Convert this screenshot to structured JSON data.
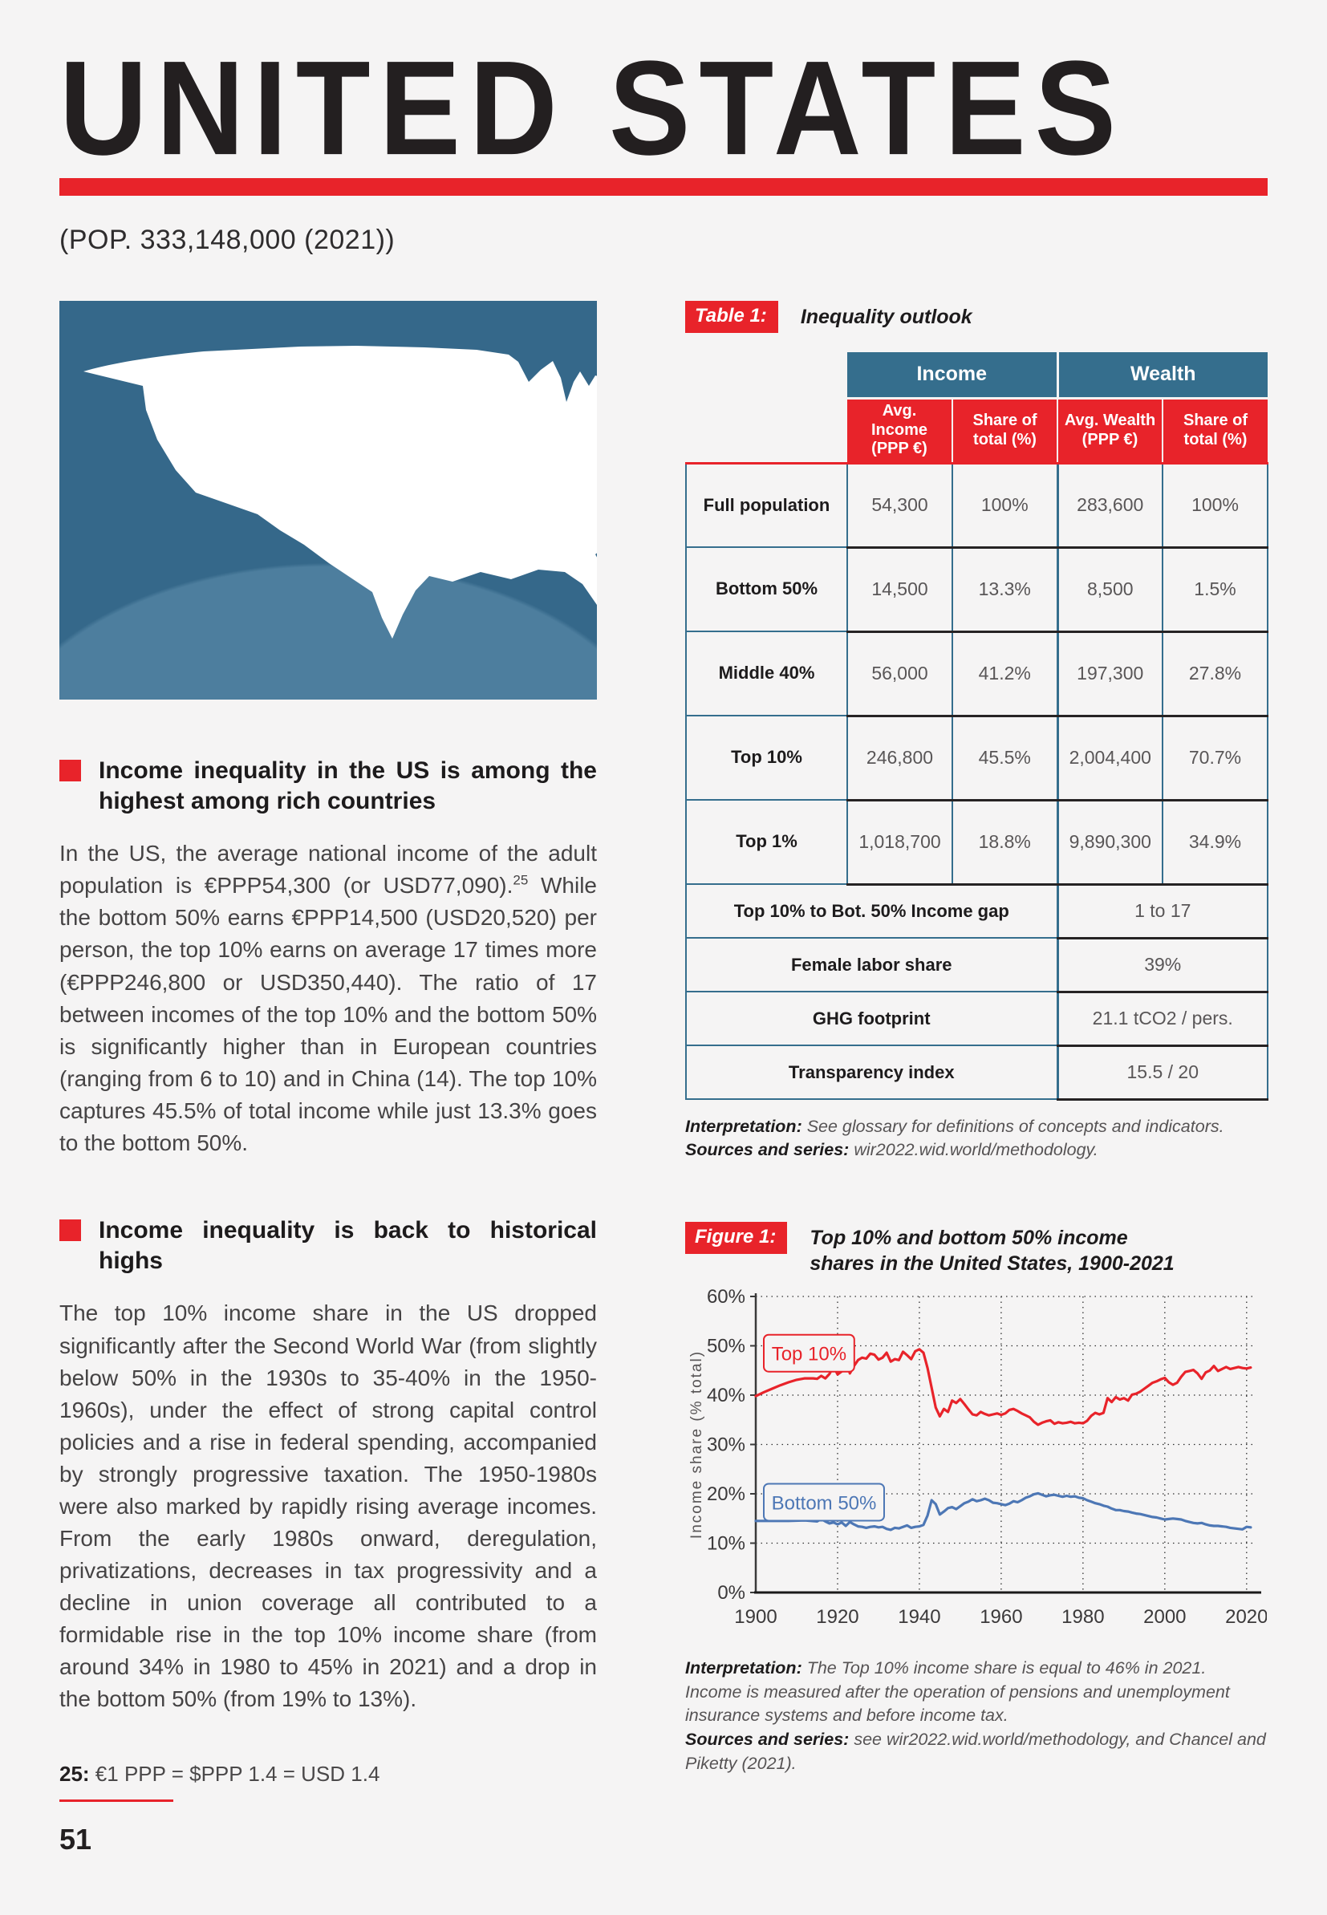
{
  "page": {
    "title": "UNITED STATES",
    "population_line": "(POP. 333,148,000 (2021))",
    "page_number": "51",
    "footnote": {
      "label": "25:",
      "text": " €1 PPP = $PPP 1.4 = USD 1.4"
    }
  },
  "colors": {
    "accent_red": "#e8232a",
    "table_header_teal": "#356e8d",
    "map_bg_dark": "#35688a",
    "map_bg_light": "#4d7e9e",
    "line_red": "#e8232a",
    "line_blue": "#4d77b5"
  },
  "sections": [
    {
      "heading": "Income inequality in the US is among the highest among rich countries",
      "body_before_sup": "In the US, the average national income of the adult population is €PPP54,300 (or USD77,090).",
      "sup": "25",
      "body_after_sup": " While the bottom 50% earns €PPP14,500 (USD20,520) per person, the top 10% earns on average 17 times more (€PPP246,800 or USD350,440). The ratio of 17 between incomes of the top 10% and the bottom 50% is significantly higher than in European countries (ranging from 6 to 10) and in China (14). The top 10% captures 45.5% of total income while just 13.3% goes to the bottom 50%."
    },
    {
      "heading": "Income inequality is back to historical highs",
      "body": "The top 10% income share in the US dropped significantly after the Second World War (from slightly below 50% in the 1930s to 35-40% in the 1950-1960s), under the effect of strong capital control policies and a rise in federal spending, accompanied by strongly progressive taxation. The 1950-1980s were also marked by rapidly rising average incomes. From the early 1980s onward, deregulation, privatizations, decreases in tax progressivity and a decline in union coverage all contributed to a formidable rise in the top 10% income share (from around 34% in 1980 to 45% in 2021) and a drop in the bottom 50% (from 19% to 13%)."
    }
  ],
  "table": {
    "label": "Table 1:",
    "title": "Inequality outlook",
    "group_headers": [
      "Income",
      "Wealth"
    ],
    "col_headers": [
      "Avg. Income (PPP €)",
      "Share of total (%)",
      "Avg. Wealth (PPP €)",
      "Share of total (%)"
    ],
    "rows": [
      {
        "label": "Full population",
        "values": [
          "54,300",
          "100%",
          "283,600",
          "100%"
        ]
      },
      {
        "label": "Bottom 50%",
        "values": [
          "14,500",
          "13.3%",
          "8,500",
          "1.5%"
        ]
      },
      {
        "label": "Middle 40%",
        "values": [
          "56,000",
          "41.2%",
          "197,300",
          "27.8%"
        ]
      },
      {
        "label": "Top 10%",
        "values": [
          "246,800",
          "45.5%",
          "2,004,400",
          "70.7%"
        ]
      },
      {
        "label": "Top 1%",
        "values": [
          "1,018,700",
          "18.8%",
          "9,890,300",
          "34.9%"
        ]
      }
    ],
    "summary_rows": [
      {
        "label": "Top 10% to Bot. 50% Income gap",
        "value": "1 to 17"
      },
      {
        "label": "Female labor share",
        "value": "39%"
      },
      {
        "label": "GHG footprint",
        "value": "21.1 tCO2 / pers."
      },
      {
        "label": "Transparency index",
        "value": "15.5 / 20"
      }
    ],
    "interpretation_label": "Interpretation:",
    "interpretation": " See glossary for definitions of concepts and indicators.",
    "sources_label": "Sources and series:",
    "sources": " wir2022.wid.world/methodology."
  },
  "figure": {
    "label": "Figure 1:",
    "title": "Top 10% and bottom 50% income shares in the United States, 1900-2021",
    "interpretation_label": "Interpretation:",
    "interpretation": " The Top 10% income share is equal to 46% in 2021. Income is measured after the operation of pensions and unemployment insurance systems and before income tax.",
    "sources_label": "Sources and series:",
    "sources": " see wir2022.wid.world/methodology, and Chancel and Piketty (2021)."
  },
  "chart_data": {
    "type": "line",
    "title": "Top 10% and bottom 50% income shares in the United States, 1900-2021",
    "xlabel": "",
    "ylabel": "Income share (% total)",
    "xlim": [
      1900,
      2022
    ],
    "ylim": [
      0,
      60
    ],
    "grid": "dotted",
    "y_ticks": [
      "0%",
      "10%",
      "20%",
      "30%",
      "40%",
      "50%",
      "60%"
    ],
    "x_ticks": [
      1900,
      1920,
      1940,
      1960,
      1980,
      2000,
      2020
    ],
    "legend_position": "inline-labels",
    "series": [
      {
        "name": "Top 10%",
        "color": "#e8232a",
        "label_value": 48.5,
        "points": [
          [
            1900,
            39.8
          ],
          [
            1902,
            40.6
          ],
          [
            1904,
            41.3
          ],
          [
            1906,
            42.0
          ],
          [
            1908,
            42.6
          ],
          [
            1910,
            43.1
          ],
          [
            1912,
            43.4
          ],
          [
            1914,
            43.4
          ],
          [
            1915,
            43.3
          ],
          [
            1916,
            43.9
          ],
          [
            1917,
            43.4
          ],
          [
            1918,
            44.3
          ],
          [
            1919,
            45.8
          ],
          [
            1920,
            44.2
          ],
          [
            1921,
            44.8
          ],
          [
            1922,
            47.4
          ],
          [
            1923,
            44.4
          ],
          [
            1924,
            45.9
          ],
          [
            1925,
            47.1
          ],
          [
            1926,
            47.6
          ],
          [
            1927,
            47.4
          ],
          [
            1928,
            48.4
          ],
          [
            1929,
            48.2
          ],
          [
            1930,
            47.2
          ],
          [
            1931,
            47.6
          ],
          [
            1932,
            48.6
          ],
          [
            1933,
            46.8
          ],
          [
            1934,
            47.3
          ],
          [
            1935,
            47.1
          ],
          [
            1936,
            48.8
          ],
          [
            1937,
            48.1
          ],
          [
            1938,
            47.3
          ],
          [
            1939,
            48.9
          ],
          [
            1940,
            49.3
          ],
          [
            1941,
            48.6
          ],
          [
            1942,
            45.5
          ],
          [
            1943,
            41.5
          ],
          [
            1944,
            37.5
          ],
          [
            1945,
            35.7
          ],
          [
            1946,
            37.2
          ],
          [
            1947,
            36.6
          ],
          [
            1948,
            38.9
          ],
          [
            1949,
            38.4
          ],
          [
            1950,
            39.2
          ],
          [
            1951,
            38.2
          ],
          [
            1952,
            37.1
          ],
          [
            1953,
            36.1
          ],
          [
            1954,
            35.9
          ],
          [
            1955,
            36.6
          ],
          [
            1956,
            36.2
          ],
          [
            1957,
            35.9
          ],
          [
            1958,
            36.1
          ],
          [
            1959,
            36.3
          ],
          [
            1960,
            36.0
          ],
          [
            1961,
            36.3
          ],
          [
            1962,
            37.0
          ],
          [
            1963,
            37.2
          ],
          [
            1964,
            36.8
          ],
          [
            1965,
            36.3
          ],
          [
            1966,
            35.9
          ],
          [
            1967,
            35.5
          ],
          [
            1968,
            34.6
          ],
          [
            1969,
            34.0
          ],
          [
            1970,
            34.4
          ],
          [
            1971,
            34.7
          ],
          [
            1972,
            34.9
          ],
          [
            1973,
            34.2
          ],
          [
            1974,
            34.5
          ],
          [
            1975,
            34.3
          ],
          [
            1976,
            34.4
          ],
          [
            1977,
            34.6
          ],
          [
            1978,
            34.3
          ],
          [
            1979,
            34.4
          ],
          [
            1980,
            34.3
          ],
          [
            1981,
            34.8
          ],
          [
            1982,
            35.8
          ],
          [
            1983,
            36.4
          ],
          [
            1984,
            36.1
          ],
          [
            1985,
            36.4
          ],
          [
            1986,
            39.4
          ],
          [
            1987,
            38.6
          ],
          [
            1988,
            39.6
          ],
          [
            1989,
            39.1
          ],
          [
            1990,
            39.4
          ],
          [
            1991,
            38.9
          ],
          [
            1992,
            40.1
          ],
          [
            1993,
            40.3
          ],
          [
            1994,
            40.7
          ],
          [
            1995,
            41.3
          ],
          [
            1996,
            41.9
          ],
          [
            1997,
            42.5
          ],
          [
            1998,
            42.8
          ],
          [
            1999,
            43.2
          ],
          [
            2000,
            43.5
          ],
          [
            2001,
            42.6
          ],
          [
            2002,
            42.1
          ],
          [
            2003,
            42.5
          ],
          [
            2004,
            43.7
          ],
          [
            2005,
            44.7
          ],
          [
            2006,
            44.9
          ],
          [
            2007,
            45.1
          ],
          [
            2008,
            44.4
          ],
          [
            2009,
            43.3
          ],
          [
            2010,
            44.6
          ],
          [
            2011,
            45.0
          ],
          [
            2012,
            45.9
          ],
          [
            2013,
            44.9
          ],
          [
            2014,
            45.3
          ],
          [
            2015,
            45.7
          ],
          [
            2016,
            45.3
          ],
          [
            2017,
            45.5
          ],
          [
            2018,
            45.7
          ],
          [
            2019,
            45.5
          ],
          [
            2020,
            45.4
          ],
          [
            2021,
            45.6
          ]
        ]
      },
      {
        "name": "Bottom 50%",
        "color": "#4d77b5",
        "label_value": 18.3,
        "points": [
          [
            1900,
            14.5
          ],
          [
            1904,
            14.5
          ],
          [
            1908,
            14.5
          ],
          [
            1912,
            14.6
          ],
          [
            1915,
            14.4
          ],
          [
            1916,
            14.9
          ],
          [
            1917,
            14.4
          ],
          [
            1918,
            14.0
          ],
          [
            1919,
            14.2
          ],
          [
            1920,
            13.8
          ],
          [
            1921,
            14.2
          ],
          [
            1922,
            13.5
          ],
          [
            1923,
            14.3
          ],
          [
            1924,
            13.8
          ],
          [
            1925,
            13.4
          ],
          [
            1926,
            13.3
          ],
          [
            1927,
            13.1
          ],
          [
            1928,
            13.3
          ],
          [
            1929,
            13.4
          ],
          [
            1930,
            13.2
          ],
          [
            1931,
            13.3
          ],
          [
            1932,
            12.9
          ],
          [
            1933,
            12.7
          ],
          [
            1934,
            13.1
          ],
          [
            1935,
            13.0
          ],
          [
            1936,
            13.3
          ],
          [
            1937,
            13.6
          ],
          [
            1938,
            13.1
          ],
          [
            1939,
            13.3
          ],
          [
            1940,
            13.4
          ],
          [
            1941,
            13.7
          ],
          [
            1942,
            15.6
          ],
          [
            1943,
            18.7
          ],
          [
            1944,
            17.9
          ],
          [
            1945,
            15.8
          ],
          [
            1946,
            16.4
          ],
          [
            1947,
            17.1
          ],
          [
            1948,
            17.3
          ],
          [
            1949,
            16.9
          ],
          [
            1950,
            17.5
          ],
          [
            1951,
            18.1
          ],
          [
            1952,
            18.4
          ],
          [
            1953,
            18.9
          ],
          [
            1954,
            18.5
          ],
          [
            1955,
            18.7
          ],
          [
            1956,
            19.0
          ],
          [
            1957,
            18.7
          ],
          [
            1958,
            18.2
          ],
          [
            1959,
            18.1
          ],
          [
            1960,
            17.9
          ],
          [
            1961,
            17.7
          ],
          [
            1962,
            18.0
          ],
          [
            1963,
            18.5
          ],
          [
            1964,
            18.3
          ],
          [
            1965,
            18.7
          ],
          [
            1966,
            19.2
          ],
          [
            1967,
            19.5
          ],
          [
            1968,
            19.9
          ],
          [
            1969,
            20.1
          ],
          [
            1970,
            19.8
          ],
          [
            1971,
            19.5
          ],
          [
            1972,
            19.7
          ],
          [
            1973,
            19.8
          ],
          [
            1974,
            19.6
          ],
          [
            1975,
            19.4
          ],
          [
            1976,
            19.6
          ],
          [
            1977,
            19.4
          ],
          [
            1978,
            19.5
          ],
          [
            1979,
            19.2
          ],
          [
            1980,
            19.1
          ],
          [
            1981,
            18.7
          ],
          [
            1982,
            18.4
          ],
          [
            1983,
            18.1
          ],
          [
            1984,
            17.9
          ],
          [
            1985,
            17.6
          ],
          [
            1986,
            17.4
          ],
          [
            1987,
            17.0
          ],
          [
            1988,
            16.7
          ],
          [
            1989,
            16.7
          ],
          [
            1990,
            16.5
          ],
          [
            1991,
            16.4
          ],
          [
            1992,
            16.2
          ],
          [
            1993,
            16.0
          ],
          [
            1994,
            15.9
          ],
          [
            1995,
            15.7
          ],
          [
            1996,
            15.5
          ],
          [
            1997,
            15.3
          ],
          [
            1998,
            15.2
          ],
          [
            1999,
            15.0
          ],
          [
            2000,
            14.8
          ],
          [
            2001,
            14.9
          ],
          [
            2002,
            15.0
          ],
          [
            2003,
            14.9
          ],
          [
            2004,
            14.8
          ],
          [
            2005,
            14.5
          ],
          [
            2006,
            14.3
          ],
          [
            2007,
            14.1
          ],
          [
            2008,
            14.0
          ],
          [
            2009,
            14.1
          ],
          [
            2010,
            13.8
          ],
          [
            2011,
            13.6
          ],
          [
            2012,
            13.5
          ],
          [
            2013,
            13.5
          ],
          [
            2014,
            13.4
          ],
          [
            2015,
            13.3
          ],
          [
            2016,
            13.1
          ],
          [
            2017,
            13.0
          ],
          [
            2018,
            12.9
          ],
          [
            2019,
            12.8
          ],
          [
            2020,
            13.3
          ],
          [
            2021,
            13.2
          ]
        ]
      }
    ]
  }
}
